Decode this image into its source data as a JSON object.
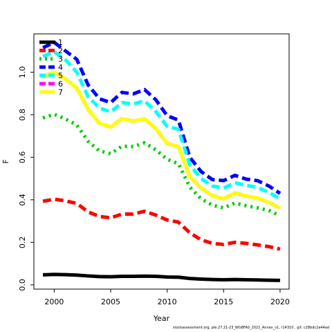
{
  "chart_data": {
    "type": "line",
    "title": "",
    "xlabel": "Year",
    "ylabel": "F",
    "xlim": [
      1998.2,
      2020.8
    ],
    "ylim": [
      -0.02,
      1.18
    ],
    "x_ticks": [
      2000,
      2005,
      2010,
      2015,
      2020
    ],
    "y_ticks": [
      0.0,
      0.2,
      0.4,
      0.6,
      0.8,
      1.0
    ],
    "x_tick_labels": [
      "2000",
      "2005",
      "2010",
      "2015",
      "2020"
    ],
    "y_tick_labels": [
      "0.0",
      "0.2",
      "0.4",
      "0.6",
      "0.8",
      "1.0"
    ],
    "grid": false,
    "legend_position": "top-left",
    "x": [
      1999,
      2000,
      2001,
      2002,
      2003,
      2004,
      2005,
      2006,
      2007,
      2008,
      2009,
      2010,
      2011,
      2012,
      2013,
      2014,
      2015,
      2016,
      2017,
      2018,
      2019,
      2020
    ],
    "series": [
      {
        "name": "1",
        "color": "#000000",
        "dash": "solid",
        "values": [
          0.047,
          0.049,
          0.048,
          0.046,
          0.042,
          0.039,
          0.038,
          0.04,
          0.04,
          0.041,
          0.04,
          0.037,
          0.036,
          0.03,
          0.027,
          0.025,
          0.024,
          0.025,
          0.024,
          0.023,
          0.022,
          0.021
        ]
      },
      {
        "name": "2",
        "color": "#ff0000",
        "dash": "dashed",
        "values": [
          0.393,
          0.403,
          0.395,
          0.383,
          0.343,
          0.322,
          0.315,
          0.333,
          0.333,
          0.346,
          0.328,
          0.305,
          0.295,
          0.245,
          0.212,
          0.195,
          0.19,
          0.2,
          0.195,
          0.188,
          0.18,
          0.168
        ]
      },
      {
        "name": "3",
        "color": "#00cd00",
        "dash": "dotted",
        "values": [
          0.785,
          0.802,
          0.78,
          0.752,
          0.675,
          0.63,
          0.617,
          0.652,
          0.65,
          0.668,
          0.635,
          0.59,
          0.57,
          0.46,
          0.405,
          0.375,
          0.362,
          0.385,
          0.372,
          0.362,
          0.35,
          0.325
        ]
      },
      {
        "name": "4",
        "color": "#0000ff",
        "dash": "dashed",
        "values": [
          1.115,
          1.14,
          1.1,
          1.06,
          0.94,
          0.875,
          0.857,
          0.905,
          0.898,
          0.918,
          0.87,
          0.795,
          0.775,
          0.6,
          0.533,
          0.495,
          0.49,
          0.515,
          0.497,
          0.49,
          0.465,
          0.43
        ]
      },
      {
        "name": "5",
        "color": "#00ffff",
        "dash": "dashed",
        "values": [
          1.075,
          1.095,
          1.058,
          1.0,
          0.885,
          0.832,
          0.813,
          0.857,
          0.85,
          0.865,
          0.815,
          0.745,
          0.732,
          0.565,
          0.5,
          0.465,
          0.455,
          0.48,
          0.468,
          0.458,
          0.435,
          0.405
        ]
      },
      {
        "name": "6",
        "color": "#ff00ff",
        "dash": "dashed",
        "values": [
          0.98,
          1.0,
          0.968,
          0.925,
          0.825,
          0.76,
          0.742,
          0.782,
          0.77,
          0.78,
          0.735,
          0.665,
          0.65,
          0.51,
          0.455,
          0.42,
          0.405,
          0.432,
          0.418,
          0.408,
          0.388,
          0.36
        ]
      },
      {
        "name": "7",
        "color": "#ffff00",
        "dash": "solid",
        "values": [
          0.98,
          1.0,
          0.968,
          0.925,
          0.825,
          0.76,
          0.742,
          0.782,
          0.77,
          0.78,
          0.735,
          0.665,
          0.65,
          0.51,
          0.455,
          0.42,
          0.405,
          0.432,
          0.418,
          0.408,
          0.388,
          0.36
        ]
      }
    ]
  },
  "footer": "stockassessment.org, ple.27.21-23_WGBFAS_2021_Annex_v1, r14310 , git: c28bdc2a44ad"
}
